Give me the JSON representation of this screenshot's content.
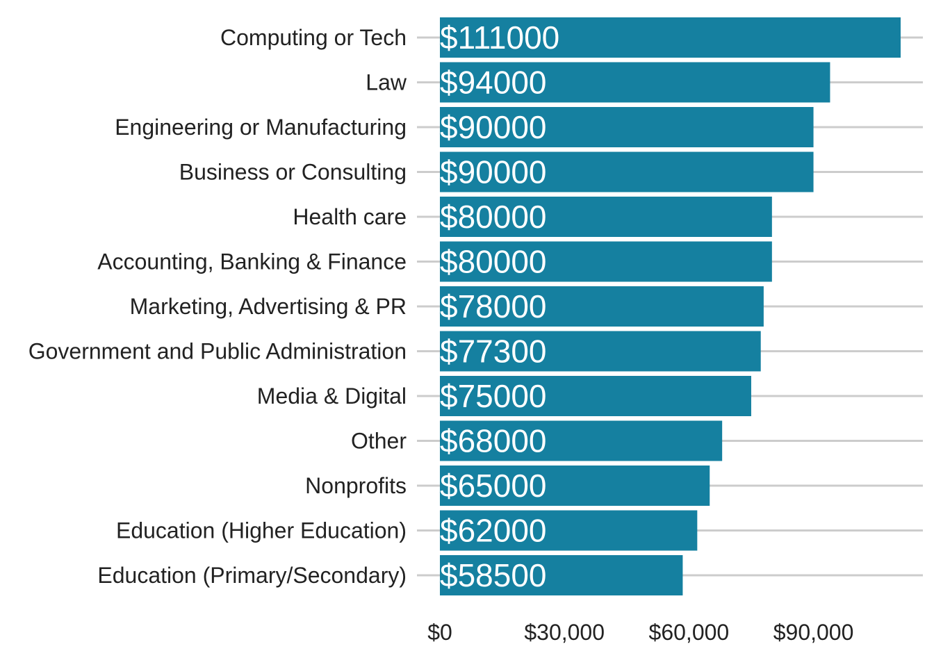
{
  "chart_data": {
    "type": "bar",
    "orientation": "horizontal",
    "categories": [
      "Computing or Tech",
      "Law",
      "Engineering or Manufacturing",
      "Business or Consulting",
      "Health care",
      "Accounting, Banking & Finance",
      "Marketing, Advertising & PR",
      "Government and Public Administration",
      "Media & Digital",
      "Other",
      "Nonprofits",
      "Education (Higher Education)",
      "Education (Primary/Secondary)"
    ],
    "values": [
      111000,
      94000,
      90000,
      90000,
      80000,
      80000,
      78000,
      77300,
      75000,
      68000,
      65000,
      62000,
      58500
    ],
    "data_labels": [
      "$111000",
      "$94000",
      "$90000",
      "$90000",
      "$80000",
      "$80000",
      "$78000",
      "$77300",
      "$75000",
      "$68000",
      "$65000",
      "$62000",
      "$58500"
    ],
    "x_ticks": [
      {
        "value": 0,
        "label": "$0"
      },
      {
        "value": 30000,
        "label": "$30,000"
      },
      {
        "value": 60000,
        "label": "$60,000"
      },
      {
        "value": 90000,
        "label": "$90,000"
      }
    ],
    "xlim": [
      0,
      116600
    ],
    "title": "",
    "xlabel": "",
    "ylabel": "",
    "grid": "horizontal gridlines at each category",
    "legend": "none",
    "colors": {
      "bar": "#1580a0",
      "grid": "#cccccc",
      "text": "#222222",
      "data_label": "#ffffff"
    }
  }
}
